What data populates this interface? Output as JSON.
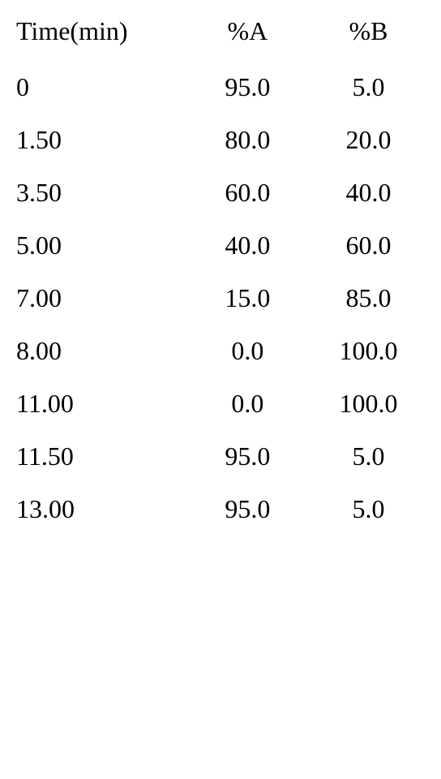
{
  "table": {
    "type": "table",
    "background_color": "#ffffff",
    "text_color": "#000000",
    "font_family": "Times New Roman",
    "font_size_pt": 24,
    "columns": [
      {
        "label": "Time(min)",
        "align": "left",
        "width_pct": 42
      },
      {
        "label": "%A",
        "align": "center",
        "width_pct": 29
      },
      {
        "label": "%B",
        "align": "center",
        "width_pct": 29
      }
    ],
    "rows": [
      {
        "time": "0",
        "a": "95.0",
        "b": "5.0"
      },
      {
        "time": "1.50",
        "a": "80.0",
        "b": "20.0"
      },
      {
        "time": "3.50",
        "a": "60.0",
        "b": "40.0"
      },
      {
        "time": "5.00",
        "a": "40.0",
        "b": "60.0"
      },
      {
        "time": "7.00",
        "a": "15.0",
        "b": "85.0"
      },
      {
        "time": "8.00",
        "a": "0.0",
        "b": "100.0"
      },
      {
        "time": "11.00",
        "a": "0.0",
        "b": "100.0"
      },
      {
        "time": "11.50",
        "a": "95.0",
        "b": "5.0"
      },
      {
        "time": "13.00",
        "a": "95.0",
        "b": "5.0"
      }
    ]
  }
}
